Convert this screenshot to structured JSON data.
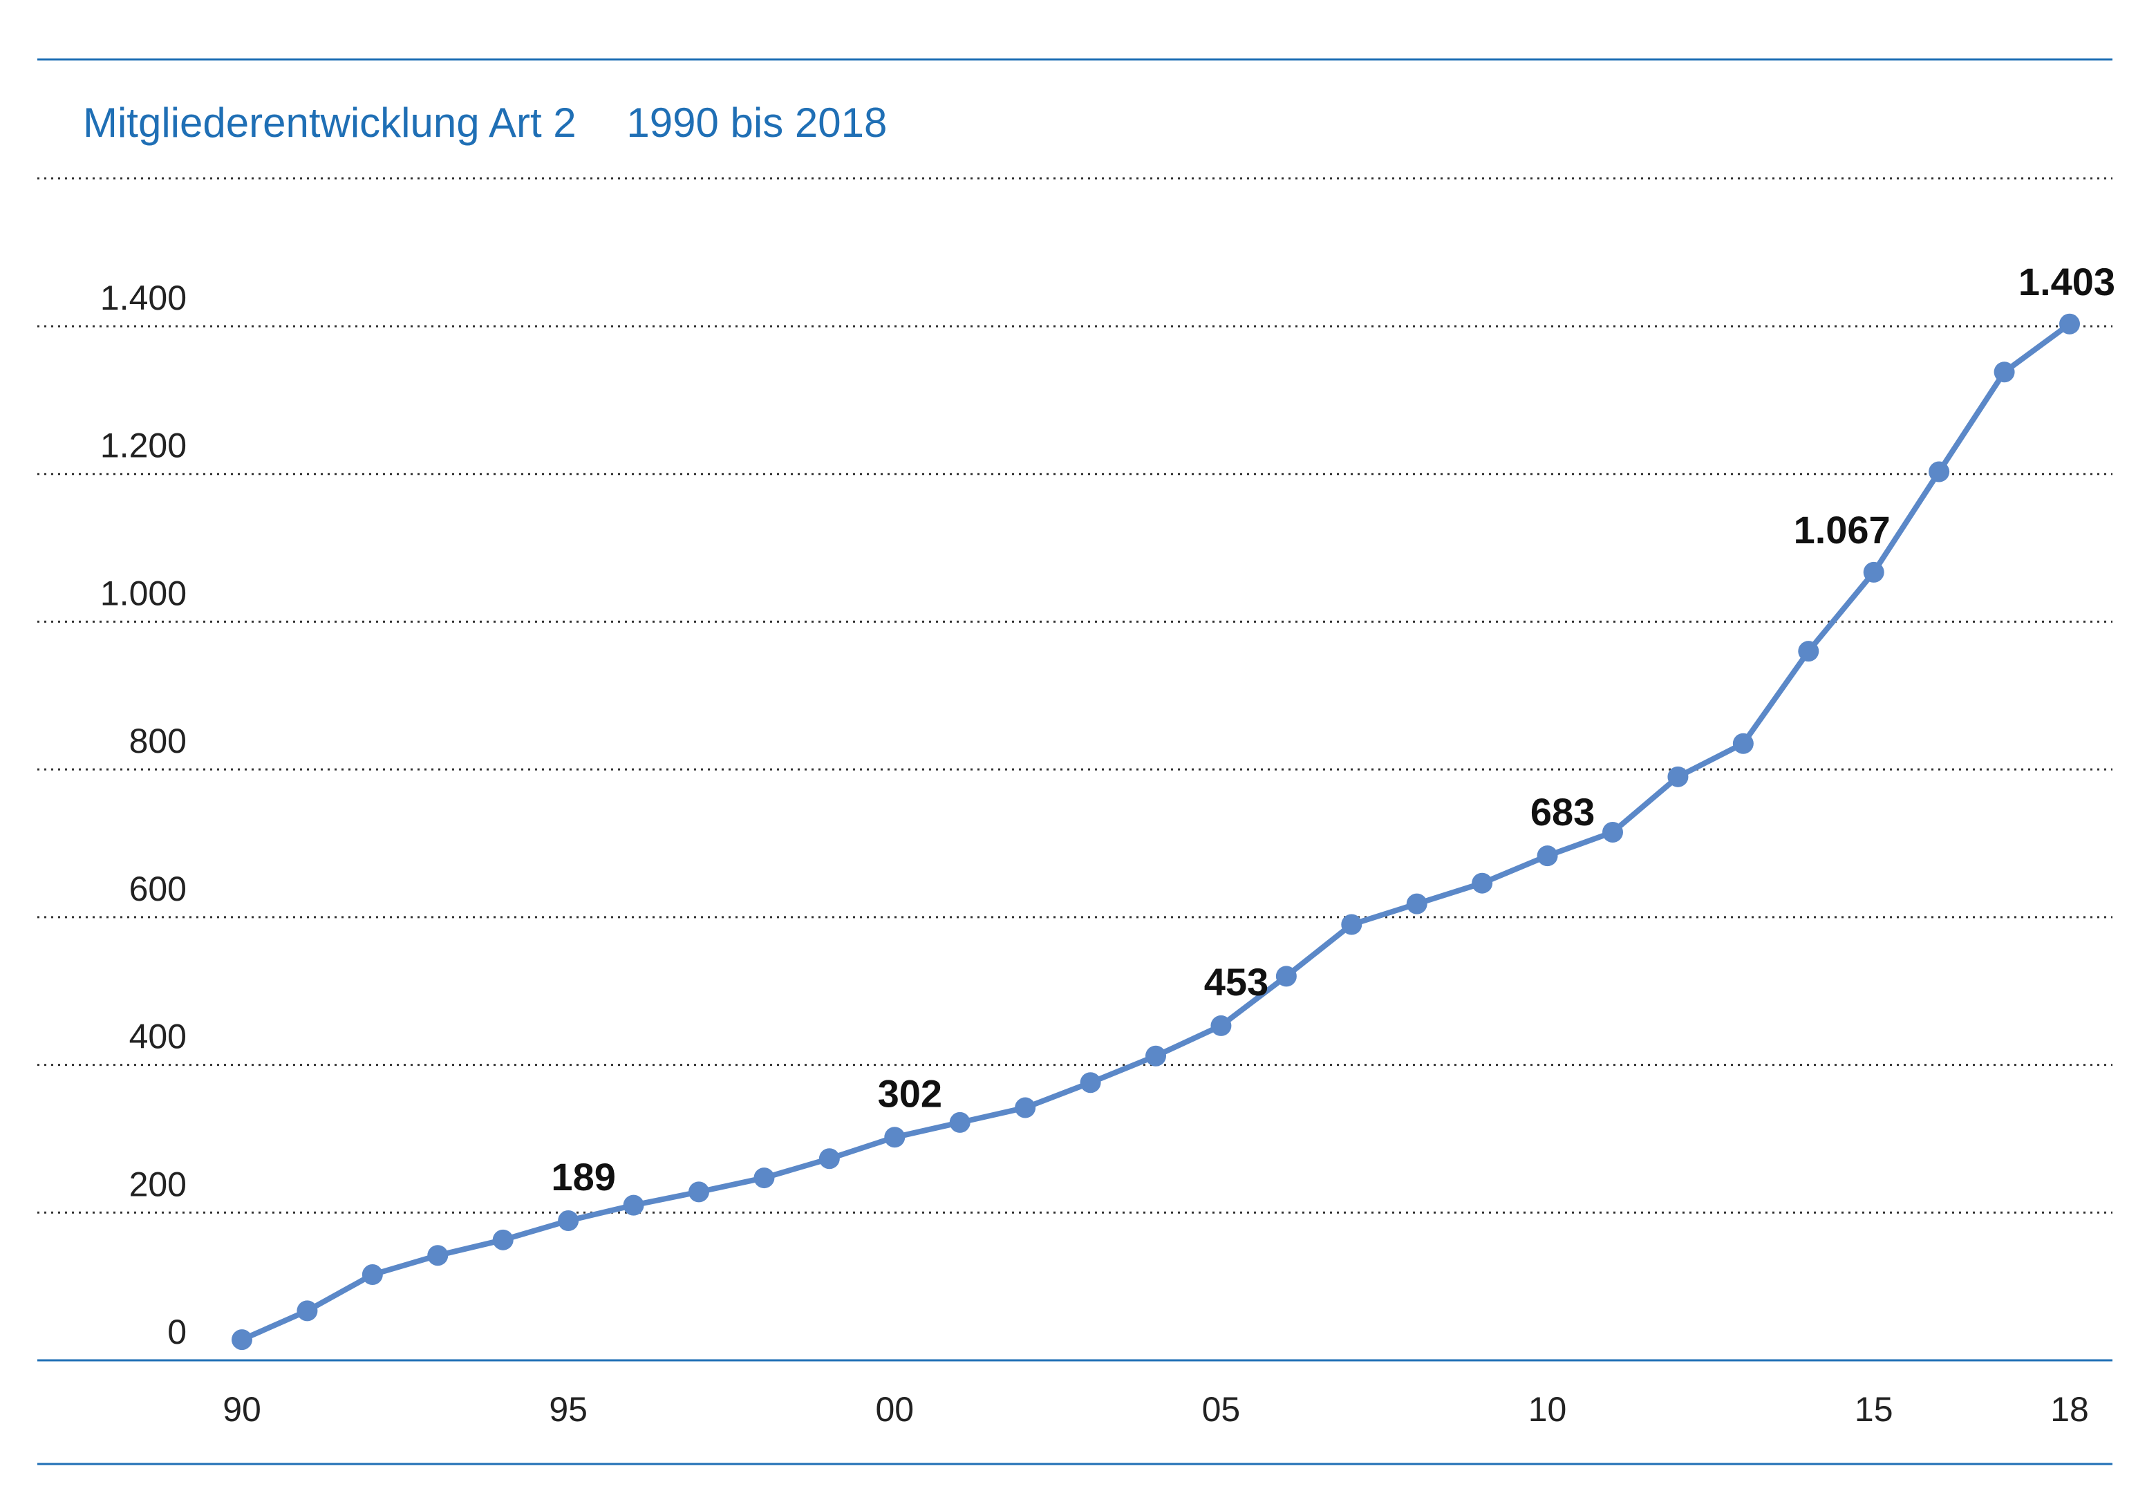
{
  "chart_data": {
    "type": "line",
    "title": "Mitgliederentwicklung Art 2",
    "subtitle": "1990 bis 2018",
    "xlabel": "",
    "ylabel": "",
    "ylim": [
      0,
      1600
    ],
    "yticks": [
      0,
      200,
      400,
      600,
      800,
      1000,
      1200,
      1400
    ],
    "ytick_labels": [
      "0",
      "200",
      "400",
      "600",
      "800",
      "1.000",
      "1.200",
      "1.400"
    ],
    "x": [
      1990,
      1991,
      1992,
      1993,
      1994,
      1995,
      1996,
      1997,
      1998,
      1999,
      2000,
      2001,
      2002,
      2003,
      2004,
      2005,
      2006,
      2007,
      2008,
      2009,
      2010,
      2011,
      2012,
      2013,
      2014,
      2015,
      2016,
      2017,
      2018
    ],
    "xtick_labels": [
      {
        "x": 1990,
        "label": "90"
      },
      {
        "x": 1995,
        "label": "95"
      },
      {
        "x": 2000,
        "label": "00"
      },
      {
        "x": 2005,
        "label": "05"
      },
      {
        "x": 2010,
        "label": "10"
      },
      {
        "x": 2015,
        "label": "15"
      },
      {
        "x": 2018,
        "label": "18"
      }
    ],
    "series": [
      {
        "values": [
          28,
          67,
          116,
          142,
          163,
          189,
          210,
          228,
          247,
          273,
          302,
          322,
          342,
          376,
          412,
          453,
          520,
          590,
          618,
          646,
          683,
          715,
          790,
          835,
          960,
          1067,
          1203,
          1338,
          1403
        ]
      }
    ],
    "data_labels": [
      {
        "x": 1995,
        "label": "189"
      },
      {
        "x": 2000,
        "label": "302"
      },
      {
        "x": 2005,
        "label": "453"
      },
      {
        "x": 2010,
        "label": "683"
      },
      {
        "x": 2015,
        "label": "1.067"
      },
      {
        "x": 2018,
        "label": "1.403"
      }
    ],
    "grid": true,
    "legend": "none",
    "colors": {
      "line": "#5b88c8",
      "title": "#1f6fb5",
      "rule": "#1f6fb5"
    }
  }
}
